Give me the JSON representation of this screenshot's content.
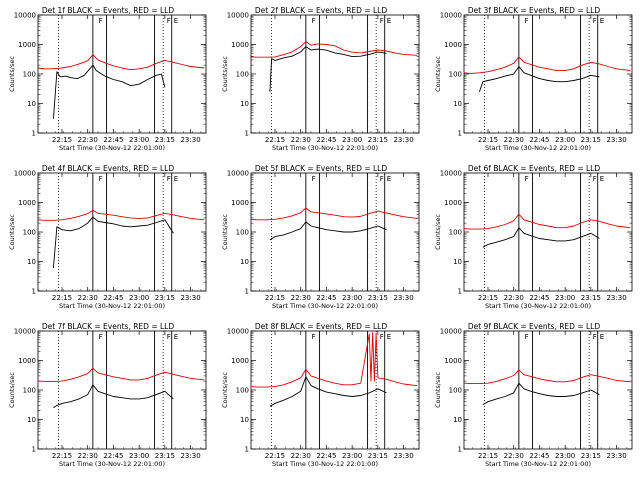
{
  "chart_data": {
    "type": "line",
    "layout": "3x3 grid of panels",
    "y_scale": "log",
    "ylim": [
      1,
      10000
    ],
    "ylabel": "Counts/sec",
    "y_tick_labels": [
      "1",
      "10",
      "100",
      "1000",
      "10000"
    ],
    "x_tick_labels": [
      "22:15",
      "22:30",
      "22:45",
      "23:00",
      "23:15",
      "23:30"
    ],
    "xlabel": "Start Time (30-Nov-12 22:01:00)",
    "x_range_minutes_from_start": [
      0,
      98
    ],
    "series_colors": {
      "events": "#000000",
      "lld": "#e00000"
    },
    "grid": false,
    "dotted_marker_times": [
      "22:13",
      "23:14"
    ],
    "solid_marker_times": [
      "22:33",
      "22:41",
      "23:09",
      "23:19"
    ],
    "flag_labels": [
      "F",
      "E"
    ],
    "panels": [
      {
        "title": "Det 1f BLACK = Events, RED = LLD",
        "events": {
          "x": [
            "22:10",
            "22:12",
            "22:14",
            "22:17",
            "22:20",
            "22:24",
            "22:28",
            "22:33",
            "22:35",
            "22:40",
            "22:45",
            "22:50",
            "22:55",
            "23:00",
            "23:05",
            "23:10",
            "23:13",
            "23:15"
          ],
          "y": [
            3,
            120,
            80,
            85,
            75,
            70,
            90,
            200,
            130,
            85,
            65,
            55,
            40,
            45,
            65,
            90,
            100,
            35
          ]
        },
        "lld": {
          "x": [
            "22:01",
            "22:05",
            "22:10",
            "22:15",
            "22:20",
            "22:25",
            "22:30",
            "22:33",
            "22:36",
            "22:40",
            "22:45",
            "22:50",
            "22:55",
            "23:00",
            "23:05",
            "23:10",
            "23:15",
            "23:20",
            "23:25",
            "23:30",
            "23:38"
          ],
          "y": [
            160,
            150,
            150,
            160,
            180,
            220,
            280,
            450,
            300,
            240,
            190,
            160,
            140,
            150,
            170,
            230,
            290,
            250,
            210,
            180,
            160
          ]
        }
      },
      {
        "title": "Det 2f BLACK = Events, RED = LLD",
        "events": {
          "x": [
            "22:12",
            "22:13",
            "22:15",
            "22:20",
            "22:25",
            "22:30",
            "22:33",
            "22:36",
            "22:40",
            "22:45",
            "22:50",
            "22:55",
            "23:00",
            "23:05",
            "23:10",
            "23:15",
            "23:20"
          ],
          "y": [
            25,
            330,
            290,
            350,
            400,
            560,
            850,
            650,
            700,
            640,
            520,
            460,
            390,
            400,
            460,
            560,
            500
          ]
        },
        "lld": {
          "x": [
            "22:01",
            "22:05",
            "22:10",
            "22:15",
            "22:20",
            "22:25",
            "22:30",
            "22:33",
            "22:36",
            "22:40",
            "22:45",
            "22:50",
            "22:55",
            "23:00",
            "23:05",
            "23:10",
            "23:15",
            "23:20",
            "23:25",
            "23:30",
            "23:38"
          ],
          "y": [
            380,
            370,
            370,
            380,
            450,
            560,
            850,
            1250,
            950,
            1050,
            1000,
            900,
            650,
            550,
            520,
            580,
            650,
            600,
            520,
            460,
            430
          ]
        }
      },
      {
        "title": "Det 3f BLACK = Events, RED = LLD",
        "events": {
          "x": [
            "22:10",
            "22:12",
            "22:15",
            "22:20",
            "22:25",
            "22:30",
            "22:33",
            "22:36",
            "22:40",
            "22:45",
            "22:50",
            "22:55",
            "23:00",
            "23:05",
            "23:10",
            "23:15",
            "23:20"
          ],
          "y": [
            25,
            55,
            60,
            70,
            85,
            100,
            180,
            110,
            90,
            70,
            60,
            55,
            55,
            60,
            70,
            90,
            80
          ]
        },
        "lld": {
          "x": [
            "22:01",
            "22:05",
            "22:10",
            "22:15",
            "22:20",
            "22:25",
            "22:30",
            "22:33",
            "22:36",
            "22:40",
            "22:45",
            "22:50",
            "22:55",
            "23:00",
            "23:05",
            "23:10",
            "23:15",
            "23:20",
            "23:25",
            "23:30",
            "23:38"
          ],
          "y": [
            110,
            105,
            110,
            120,
            140,
            170,
            230,
            380,
            250,
            210,
            170,
            150,
            130,
            130,
            150,
            200,
            250,
            220,
            180,
            150,
            130
          ]
        }
      },
      {
        "title": "Det 4f BLACK = Events, RED = LLD",
        "events": {
          "x": [
            "22:10",
            "22:12",
            "22:15",
            "22:20",
            "22:25",
            "22:30",
            "22:33",
            "22:36",
            "22:40",
            "22:45",
            "22:50",
            "22:55",
            "23:00",
            "23:05",
            "23:10",
            "23:15",
            "23:20"
          ],
          "y": [
            6,
            150,
            120,
            110,
            130,
            200,
            320,
            230,
            210,
            190,
            160,
            150,
            160,
            170,
            210,
            260,
            90
          ]
        },
        "lld": {
          "x": [
            "22:01",
            "22:05",
            "22:10",
            "22:15",
            "22:20",
            "22:25",
            "22:30",
            "22:33",
            "22:36",
            "22:40",
            "22:45",
            "22:50",
            "22:55",
            "23:00",
            "23:05",
            "23:10",
            "23:15",
            "23:20",
            "23:25",
            "23:30",
            "23:38"
          ],
          "y": [
            260,
            250,
            250,
            260,
            290,
            340,
            420,
            550,
            430,
            400,
            370,
            330,
            300,
            290,
            300,
            360,
            430,
            380,
            330,
            290,
            260
          ]
        }
      },
      {
        "title": "Det 5f BLACK = Events, RED = LLD",
        "events": {
          "x": [
            "22:12",
            "22:15",
            "22:20",
            "22:25",
            "22:30",
            "22:33",
            "22:36",
            "22:40",
            "22:45",
            "22:50",
            "22:55",
            "23:00",
            "23:05",
            "23:10",
            "23:15",
            "23:20"
          ],
          "y": [
            55,
            70,
            80,
            100,
            130,
            220,
            160,
            140,
            120,
            110,
            100,
            100,
            110,
            130,
            160,
            120
          ]
        },
        "lld": {
          "x": [
            "22:01",
            "22:05",
            "22:10",
            "22:15",
            "22:20",
            "22:25",
            "22:30",
            "22:33",
            "22:36",
            "22:40",
            "22:45",
            "22:50",
            "22:55",
            "23:00",
            "23:05",
            "23:10",
            "23:15",
            "23:20",
            "23:25",
            "23:30",
            "23:38"
          ],
          "y": [
            270,
            260,
            260,
            270,
            300,
            350,
            450,
            650,
            480,
            450,
            410,
            370,
            330,
            320,
            340,
            420,
            510,
            440,
            380,
            330,
            290
          ]
        }
      },
      {
        "title": "Det 6f BLACK = Events, RED = LLD",
        "events": {
          "x": [
            "22:12",
            "22:15",
            "22:20",
            "22:25",
            "22:30",
            "22:33",
            "22:36",
            "22:40",
            "22:45",
            "22:50",
            "22:55",
            "23:00",
            "23:05",
            "23:10",
            "23:15",
            "23:20"
          ],
          "y": [
            30,
            38,
            45,
            55,
            70,
            140,
            90,
            75,
            60,
            55,
            50,
            50,
            55,
            70,
            90,
            60
          ]
        },
        "lld": {
          "x": [
            "22:01",
            "22:05",
            "22:10",
            "22:15",
            "22:20",
            "22:25",
            "22:30",
            "22:33",
            "22:36",
            "22:40",
            "22:45",
            "22:50",
            "22:55",
            "23:00",
            "23:05",
            "23:10",
            "23:15",
            "23:20",
            "23:25",
            "23:30",
            "23:38"
          ],
          "y": [
            130,
            125,
            125,
            130,
            150,
            180,
            240,
            400,
            260,
            220,
            180,
            160,
            140,
            140,
            160,
            210,
            260,
            230,
            190,
            160,
            140
          ]
        }
      },
      {
        "title": "Det 7f BLACK = Events, RED = LLD",
        "events": {
          "x": [
            "22:10",
            "22:12",
            "22:15",
            "22:20",
            "22:25",
            "22:30",
            "22:33",
            "22:36",
            "22:40",
            "22:45",
            "22:50",
            "22:55",
            "23:00",
            "23:05",
            "23:10",
            "23:15",
            "23:20"
          ],
          "y": [
            25,
            30,
            35,
            40,
            50,
            70,
            150,
            90,
            75,
            60,
            55,
            50,
            50,
            55,
            70,
            90,
            50
          ]
        },
        "lld": {
          "x": [
            "22:01",
            "22:05",
            "22:10",
            "22:15",
            "22:20",
            "22:25",
            "22:30",
            "22:33",
            "22:36",
            "22:40",
            "22:45",
            "22:50",
            "22:55",
            "23:00",
            "23:05",
            "23:10",
            "23:15",
            "23:20",
            "23:25",
            "23:30",
            "23:38"
          ],
          "y": [
            200,
            195,
            195,
            200,
            230,
            280,
            360,
            550,
            380,
            330,
            280,
            250,
            220,
            220,
            250,
            320,
            400,
            340,
            290,
            250,
            220
          ]
        }
      },
      {
        "title": "Det 8f BLACK = Events, RED = LLD",
        "events": {
          "x": [
            "22:12",
            "22:15",
            "22:20",
            "22:25",
            "22:30",
            "22:33",
            "22:36",
            "22:40",
            "22:45",
            "22:50",
            "22:55",
            "23:00",
            "23:05",
            "23:10",
            "23:15",
            "23:20"
          ],
          "y": [
            28,
            35,
            45,
            60,
            90,
            280,
            140,
            110,
            85,
            75,
            65,
            60,
            65,
            80,
            110,
            80
          ]
        },
        "lld": {
          "x": [
            "22:01",
            "22:05",
            "22:10",
            "22:15",
            "22:20",
            "22:25",
            "22:30",
            "22:33",
            "22:36",
            "22:40",
            "22:45",
            "22:50",
            "22:55",
            "23:00",
            "23:05",
            "23:10",
            "23:11",
            "23:12",
            "23:13",
            "23:14",
            "23:15",
            "23:20",
            "23:25",
            "23:30",
            "23:38"
          ],
          "y": [
            130,
            125,
            125,
            130,
            150,
            190,
            260,
            500,
            300,
            250,
            200,
            170,
            150,
            150,
            170,
            8000,
            200,
            9000,
            200,
            8500,
            260,
            230,
            190,
            160,
            140
          ]
        }
      },
      {
        "title": "Det 9f BLACK = Events, RED = LLD",
        "events": {
          "x": [
            "22:12",
            "22:15",
            "22:20",
            "22:25",
            "22:30",
            "22:33",
            "22:36",
            "22:40",
            "22:45",
            "22:50",
            "22:55",
            "23:00",
            "23:05",
            "23:10",
            "23:15",
            "23:20"
          ],
          "y": [
            32,
            40,
            50,
            60,
            80,
            170,
            110,
            90,
            75,
            65,
            60,
            60,
            65,
            80,
            100,
            70
          ]
        },
        "lld": {
          "x": [
            "22:01",
            "22:05",
            "22:10",
            "22:15",
            "22:20",
            "22:25",
            "22:30",
            "22:33",
            "22:36",
            "22:40",
            "22:45",
            "22:50",
            "22:55",
            "23:00",
            "23:05",
            "23:10",
            "23:15",
            "23:20",
            "23:25",
            "23:30",
            "23:38"
          ],
          "y": [
            170,
            165,
            165,
            170,
            195,
            240,
            310,
            480,
            330,
            290,
            240,
            210,
            190,
            190,
            210,
            270,
            330,
            290,
            250,
            210,
            190
          ]
        }
      }
    ]
  }
}
